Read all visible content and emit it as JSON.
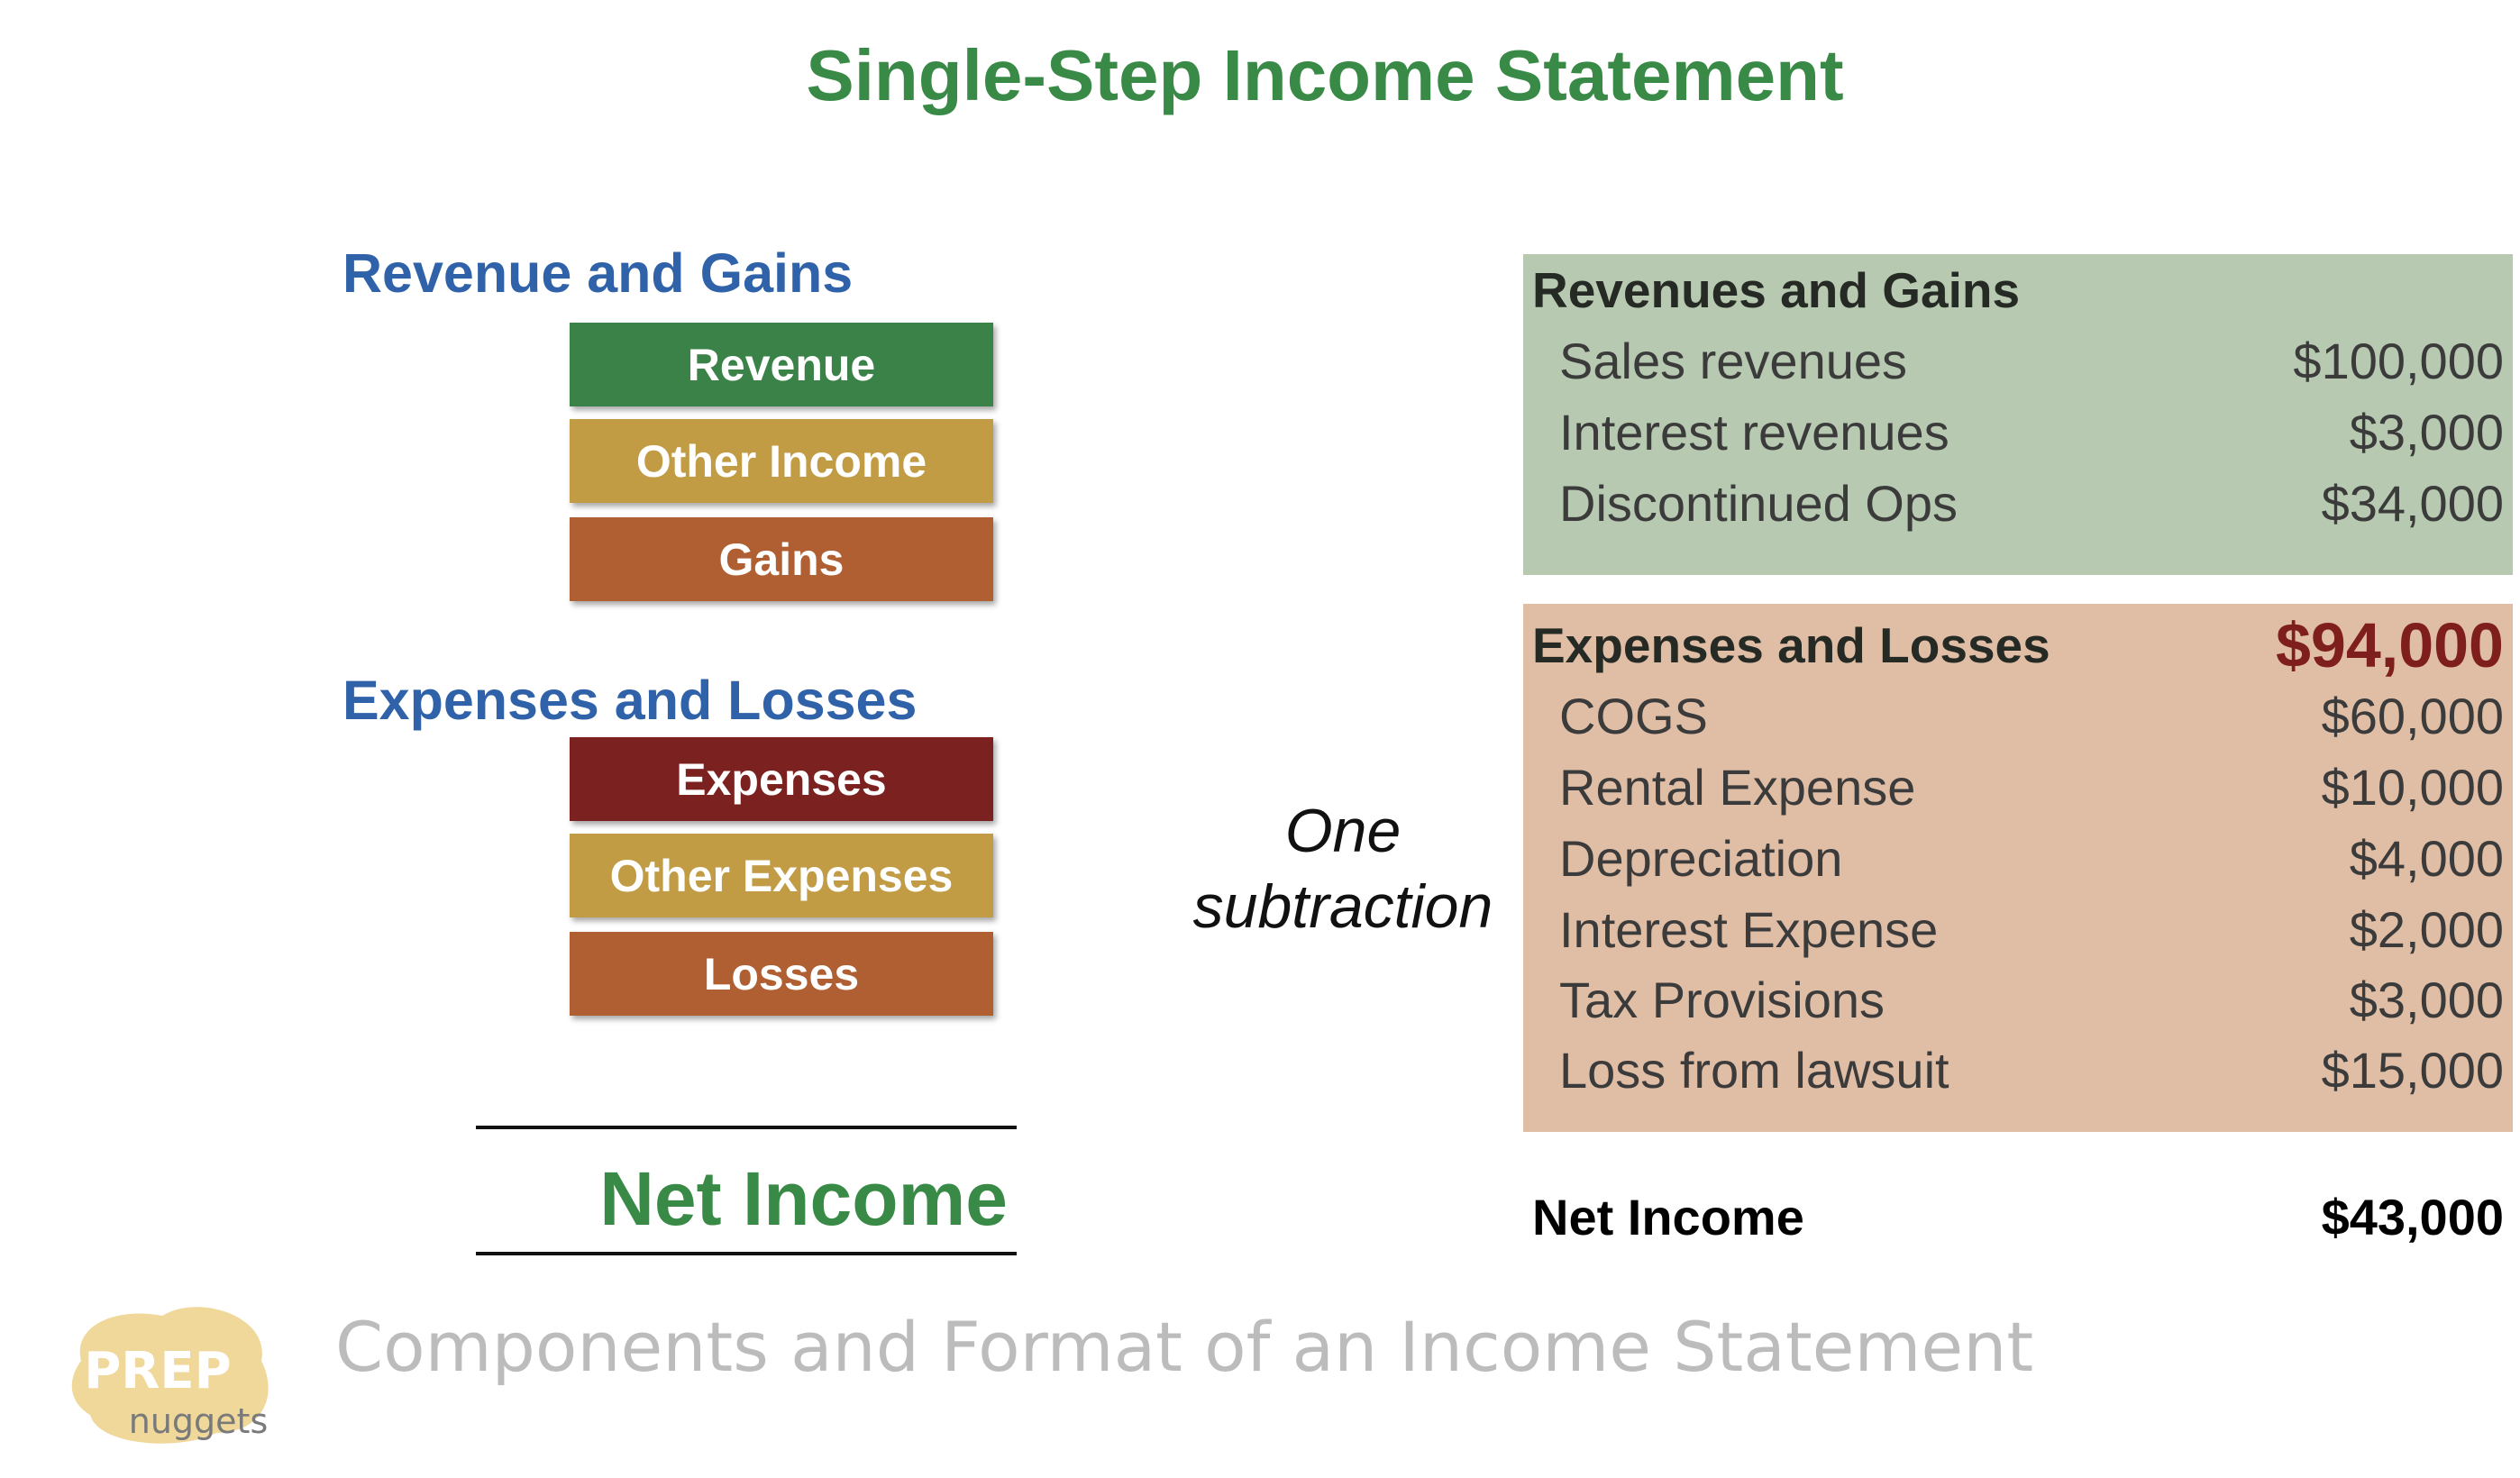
{
  "title": "Single-Step Income Statement",
  "left": {
    "revenue_heading": "Revenue and Gains",
    "revenue_items": [
      "Revenue",
      "Other Income",
      "Gains"
    ],
    "expense_heading": "Expenses and Losses",
    "expense_items": [
      "Expenses",
      "Other Expenses",
      "Losses"
    ],
    "net_income": "Net Income"
  },
  "middle": {
    "line1": "One",
    "line2": "subtraction"
  },
  "statement": {
    "revenues": {
      "heading": "Revenues and Gains",
      "rows": [
        {
          "label": "Sales revenues",
          "amount": "$100,000"
        },
        {
          "label": "Interest revenues",
          "amount": "$3,000"
        },
        {
          "label": "Discontinued Ops",
          "amount": "$34,000"
        }
      ]
    },
    "expenses": {
      "heading": "Expenses and Losses",
      "total": "$94,000",
      "rows": [
        {
          "label": "COGS",
          "amount": "$60,000"
        },
        {
          "label": "Rental Expense",
          "amount": "$10,000"
        },
        {
          "label": "Depreciation",
          "amount": "$4,000"
        },
        {
          "label": "Interest Expense",
          "amount": "$2,000"
        },
        {
          "label": "Tax Provisions",
          "amount": "$3,000"
        },
        {
          "label": "Loss from lawsuit",
          "amount": "$15,000"
        }
      ]
    },
    "net_income": {
      "label": "Net Income",
      "amount": "$43,000"
    }
  },
  "footer": {
    "caption": "Components and Format of an Income Statement",
    "logo_top": "PREP",
    "logo_bottom": "nuggets"
  },
  "colors": {
    "title_green": "#3a8a47",
    "heading_blue": "#2f62a8",
    "box_green": "#3b8249",
    "box_gold": "#c19c45",
    "box_orange": "#b05f33",
    "box_maroon": "#7b2220",
    "revenue_panel": "#b7c9b0",
    "expense_panel": "#e0bea6",
    "expense_total": "#7e1f1d"
  }
}
